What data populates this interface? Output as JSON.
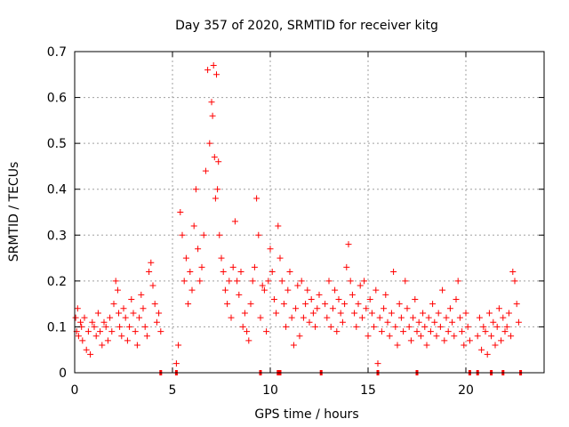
{
  "chart_data": {
    "type": "scatter",
    "title": "Day 357 of 2020, SRMTID for receiver kitg",
    "xlabel": "GPS time / hours",
    "ylabel": "SRMTID / TECUs",
    "xlim": [
      0,
      24
    ],
    "ylim": [
      0,
      0.7
    ],
    "xticks": [
      0,
      5,
      10,
      15,
      20
    ],
    "yticks": [
      0,
      0.1,
      0.2,
      0.3,
      0.4,
      0.5,
      0.6,
      0.7
    ],
    "xtick_labels": [
      "0",
      "5",
      "10",
      "15",
      "20"
    ],
    "ytick_labels": [
      "0",
      "0.1",
      "0.2",
      "0.3",
      "0.4",
      "0.5",
      "0.6",
      "0.7"
    ],
    "grid": true,
    "marker": "+",
    "marker_color": "#ff0000",
    "series": [
      {
        "name": "SRMTID",
        "x": [
          0.05,
          0.1,
          0.15,
          0.2,
          0.3,
          0.35,
          0.4,
          0.5,
          0.6,
          0.7,
          0.8,
          0.9,
          1.0,
          1.1,
          1.2,
          1.3,
          1.4,
          1.5,
          1.6,
          1.7,
          1.8,
          1.9,
          2.0,
          2.1,
          2.2,
          2.25,
          2.3,
          2.4,
          2.5,
          2.6,
          2.7,
          2.8,
          2.9,
          3.0,
          3.1,
          3.2,
          3.3,
          3.4,
          3.5,
          3.6,
          3.7,
          3.8,
          3.9,
          4.0,
          4.1,
          4.2,
          4.3,
          4.4,
          5.2,
          5.3,
          5.4,
          5.5,
          5.6,
          5.7,
          5.8,
          5.9,
          6.0,
          6.1,
          6.2,
          6.3,
          6.4,
          6.5,
          6.6,
          6.7,
          6.8,
          6.9,
          7.0,
          7.05,
          7.1,
          7.15,
          7.2,
          7.25,
          7.3,
          7.35,
          7.4,
          7.5,
          7.6,
          7.7,
          7.8,
          7.9,
          8.0,
          8.1,
          8.2,
          8.3,
          8.4,
          8.5,
          8.6,
          8.7,
          8.8,
          8.9,
          9.0,
          9.1,
          9.2,
          9.3,
          9.4,
          9.5,
          9.6,
          9.7,
          9.8,
          9.9,
          10.0,
          10.1,
          10.2,
          10.3,
          10.4,
          10.5,
          10.6,
          10.7,
          10.8,
          10.9,
          11.0,
          11.1,
          11.2,
          11.3,
          11.4,
          11.5,
          11.6,
          11.7,
          11.8,
          11.9,
          12.0,
          12.1,
          12.2,
          12.3,
          12.4,
          12.5,
          12.8,
          12.9,
          13.0,
          13.1,
          13.2,
          13.3,
          13.4,
          13.5,
          13.6,
          13.7,
          13.8,
          13.9,
          14.0,
          14.1,
          14.2,
          14.3,
          14.4,
          14.5,
          14.6,
          14.7,
          14.8,
          14.9,
          15.0,
          15.1,
          15.2,
          15.3,
          15.4,
          15.5,
          15.6,
          15.7,
          15.8,
          15.9,
          16.0,
          16.1,
          16.2,
          16.3,
          16.4,
          16.5,
          16.6,
          16.7,
          16.8,
          16.9,
          17.0,
          17.1,
          17.2,
          17.3,
          17.4,
          17.5,
          17.6,
          17.7,
          17.8,
          17.9,
          18.0,
          18.1,
          18.2,
          18.3,
          18.4,
          18.5,
          18.6,
          18.7,
          18.8,
          18.9,
          19.0,
          19.1,
          19.2,
          19.3,
          19.4,
          19.5,
          19.6,
          19.7,
          19.8,
          19.9,
          20.0,
          20.1,
          20.2,
          20.6,
          20.7,
          20.8,
          20.9,
          21.0,
          21.1,
          21.2,
          21.3,
          21.4,
          21.5,
          21.6,
          21.7,
          21.8,
          21.9,
          22.0,
          22.1,
          22.2,
          22.3,
          22.4,
          22.5,
          22.6,
          22.7
        ],
        "y": [
          0.12,
          0.09,
          0.14,
          0.08,
          0.11,
          0.1,
          0.07,
          0.12,
          0.05,
          0.09,
          0.04,
          0.11,
          0.1,
          0.08,
          0.13,
          0.09,
          0.06,
          0.11,
          0.1,
          0.07,
          0.12,
          0.09,
          0.15,
          0.2,
          0.18,
          0.13,
          0.1,
          0.08,
          0.14,
          0.12,
          0.07,
          0.1,
          0.16,
          0.13,
          0.09,
          0.06,
          0.12,
          0.17,
          0.14,
          0.1,
          0.08,
          0.22,
          0.24,
          0.19,
          0.15,
          0.11,
          0.13,
          0.09,
          0.02,
          0.06,
          0.35,
          0.3,
          0.2,
          0.25,
          0.15,
          0.22,
          0.18,
          0.32,
          0.4,
          0.27,
          0.2,
          0.23,
          0.3,
          0.44,
          0.66,
          0.5,
          0.59,
          0.56,
          0.67,
          0.47,
          0.38,
          0.65,
          0.4,
          0.46,
          0.3,
          0.25,
          0.22,
          0.18,
          0.15,
          0.2,
          0.12,
          0.23,
          0.33,
          0.2,
          0.17,
          0.22,
          0.1,
          0.13,
          0.09,
          0.07,
          0.15,
          0.2,
          0.23,
          0.38,
          0.3,
          0.12,
          0.19,
          0.18,
          0.09,
          0.2,
          0.27,
          0.22,
          0.16,
          0.13,
          0.32,
          0.25,
          0.2,
          0.15,
          0.1,
          0.18,
          0.22,
          0.12,
          0.06,
          0.14,
          0.19,
          0.08,
          0.2,
          0.12,
          0.15,
          0.18,
          0.11,
          0.16,
          0.13,
          0.1,
          0.14,
          0.17,
          0.15,
          0.12,
          0.2,
          0.1,
          0.14,
          0.18,
          0.09,
          0.16,
          0.13,
          0.11,
          0.15,
          0.23,
          0.28,
          0.2,
          0.17,
          0.13,
          0.1,
          0.15,
          0.19,
          0.12,
          0.2,
          0.14,
          0.08,
          0.16,
          0.13,
          0.1,
          0.18,
          0.02,
          0.12,
          0.09,
          0.14,
          0.17,
          0.11,
          0.08,
          0.13,
          0.22,
          0.1,
          0.06,
          0.15,
          0.12,
          0.09,
          0.2,
          0.14,
          0.1,
          0.07,
          0.12,
          0.16,
          0.09,
          0.11,
          0.08,
          0.13,
          0.1,
          0.06,
          0.12,
          0.09,
          0.15,
          0.11,
          0.08,
          0.13,
          0.1,
          0.18,
          0.07,
          0.12,
          0.09,
          0.14,
          0.11,
          0.08,
          0.16,
          0.2,
          0.12,
          0.09,
          0.06,
          0.13,
          0.1,
          0.07,
          0.08,
          0.12,
          0.05,
          0.1,
          0.09,
          0.04,
          0.13,
          0.08,
          0.11,
          0.06,
          0.1,
          0.14,
          0.07,
          0.12,
          0.09,
          0.1,
          0.13,
          0.08,
          0.22,
          0.2,
          0.15,
          0.11
        ]
      }
    ],
    "zero_markers_x": [
      4.4,
      5.2,
      9.5,
      10.4,
      10.5,
      12.6,
      15.5,
      17.5,
      20.2,
      20.6,
      21.3,
      21.9,
      22.8
    ]
  }
}
